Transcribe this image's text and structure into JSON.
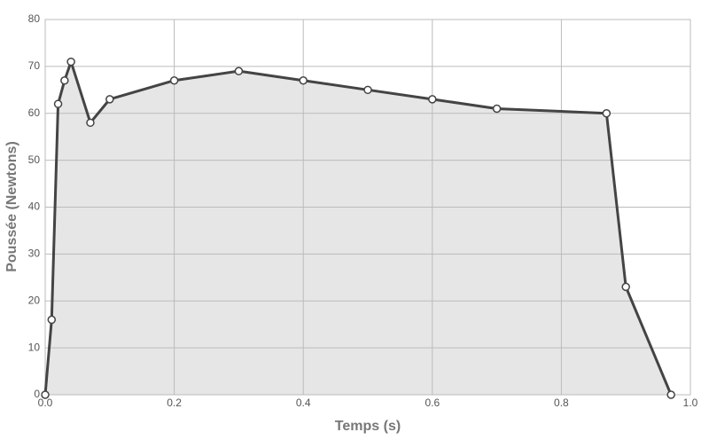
{
  "chart_data": {
    "type": "area",
    "x": [
      0,
      0.01,
      0.02,
      0.03,
      0.04,
      0.07,
      0.1,
      0.2,
      0.3,
      0.4,
      0.5,
      0.6,
      0.7,
      0.87,
      0.9,
      0.97
    ],
    "series": [
      {
        "color": "#444444",
        "values": [
          0,
          16,
          62,
          67,
          71,
          58,
          63,
          67,
          69,
          67,
          65,
          63,
          61,
          60,
          23,
          0
        ]
      }
    ],
    "fill": "#e6e6e6",
    "x_label": "Temps (s)",
    "y_label": "Poussée (Newtons)",
    "xlim": [
      0,
      1
    ],
    "xticks": [
      {
        "value": 0,
        "label": "0.0"
      },
      0.2,
      0.4,
      0.6,
      0.8,
      {
        "value": 1,
        "label": "1.0"
      }
    ],
    "ylim": [
      0,
      80
    ],
    "yticks": [
      0,
      10,
      20,
      30,
      40,
      50,
      60,
      70,
      80
    ],
    "grid": true
  }
}
